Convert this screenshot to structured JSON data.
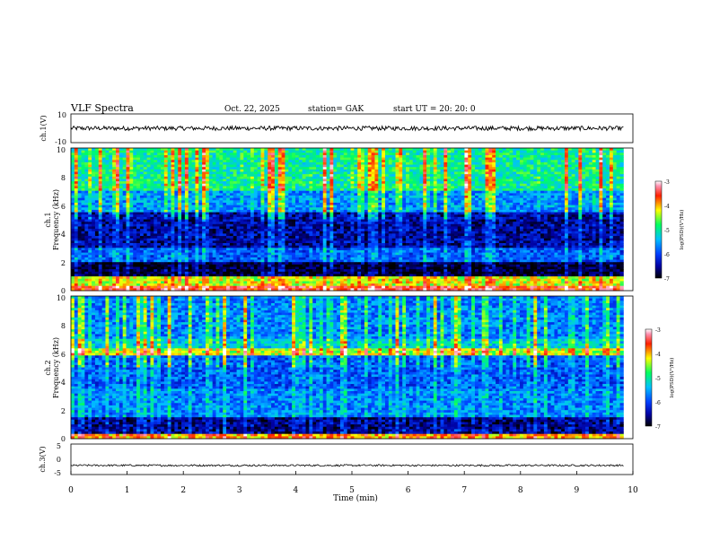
{
  "header": {
    "title": "VLF  Spectra",
    "date": "Oct. 22, 2025",
    "station": "station= GAK",
    "start": "start  UT  =    20: 20: 0"
  },
  "chart_data": [
    {
      "type": "line",
      "name": "ch1-waveform",
      "ylabel": "ch.1(V)",
      "ylim": [
        -10,
        10
      ],
      "yticks": [
        "10",
        "-10"
      ],
      "baseline_v": 0,
      "noise_amplitude_v": 1.5
    },
    {
      "type": "heatmap",
      "name": "ch1-spectrogram",
      "ylabel": "ch.1\nFrequency (kHz)",
      "ylabel_line1": "ch.1",
      "ylabel_line2": "Frequency  (kHz)",
      "ylim": [
        0,
        10
      ],
      "yticks": [
        "0",
        "2",
        "4",
        "6",
        "8",
        "10"
      ],
      "xlim": [
        0,
        9.83
      ],
      "colorbar": {
        "label": "log(PSD)(V²/Hz)",
        "range": [
          -7,
          -3
        ],
        "ticks": [
          "-3",
          "-4",
          "-5",
          "-6",
          "-7"
        ]
      }
    },
    {
      "type": "heatmap",
      "name": "ch2-spectrogram",
      "ylabel_line1": "ch.2",
      "ylabel_line2": "Frequency  (kHz)",
      "ylim": [
        0,
        10
      ],
      "yticks": [
        "0",
        "2",
        "4",
        "6",
        "8",
        "10"
      ],
      "xlim": [
        0,
        9.83
      ],
      "colorbar": {
        "label": "log(PSD)(V²/Hz)",
        "range": [
          -7,
          -3
        ],
        "ticks": [
          "-3",
          "-4",
          "-5",
          "-6",
          "-7"
        ]
      }
    },
    {
      "type": "line",
      "name": "ch3-waveform",
      "ylabel": "ch.3(V)",
      "ylim": [
        -5,
        5
      ],
      "yticks": [
        "5",
        "0",
        "-5"
      ],
      "baseline_v": -2,
      "noise_amplitude_v": 0.3
    }
  ],
  "xaxis": {
    "label": "Time  (min)",
    "range": [
      0,
      10
    ],
    "ticks": [
      "0",
      "1",
      "2",
      "3",
      "4",
      "5",
      "6",
      "7",
      "8",
      "9",
      "10"
    ]
  }
}
